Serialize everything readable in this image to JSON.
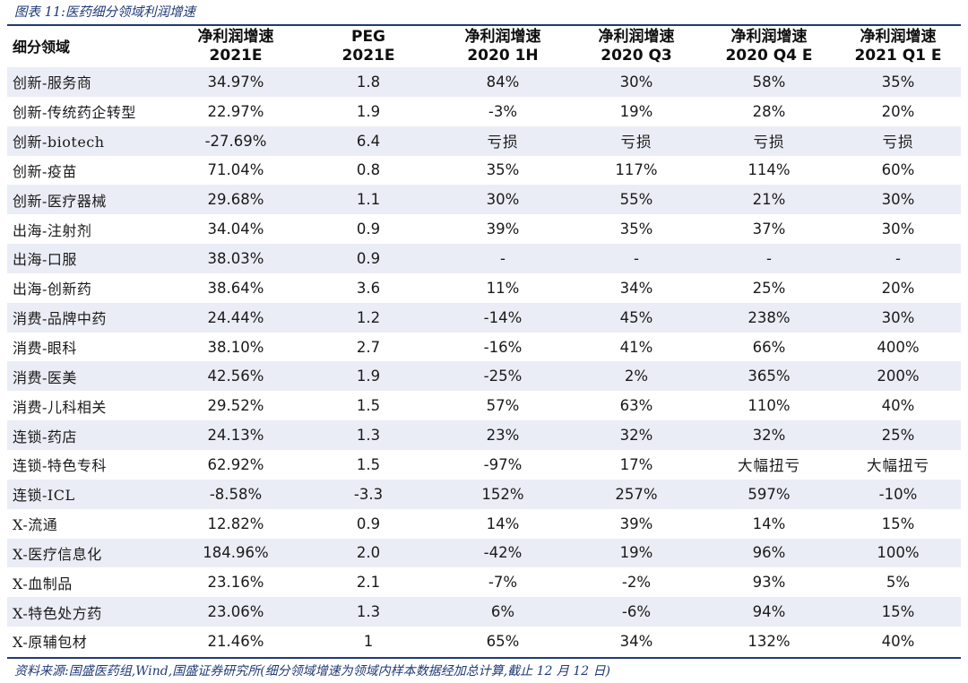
{
  "caption": "图表 11:医药细分领域利润增速",
  "table": {
    "headers": [
      {
        "line1": "细分领域",
        "line2": ""
      },
      {
        "line1": "净利润增速",
        "line2": "2021E"
      },
      {
        "line1": "PEG",
        "line2": "2021E"
      },
      {
        "line1": "净利润增速",
        "line2": "2020 1H"
      },
      {
        "line1": "净利润增速",
        "line2": "2020 Q3"
      },
      {
        "line1": "净利润增速",
        "line2": "2020 Q4 E"
      },
      {
        "line1": "净利润增速",
        "line2": "2021 Q1 E"
      }
    ],
    "rows": [
      [
        "创新-服务商",
        "34.97%",
        "1.8",
        "84%",
        "30%",
        "58%",
        "35%"
      ],
      [
        "创新-传统药企转型",
        "22.97%",
        "1.9",
        "-3%",
        "19%",
        "28%",
        "20%"
      ],
      [
        "创新-biotech",
        "-27.69%",
        "6.4",
        "亏损",
        "亏损",
        "亏损",
        "亏损"
      ],
      [
        "创新-疫苗",
        "71.04%",
        "0.8",
        "35%",
        "117%",
        "114%",
        "60%"
      ],
      [
        "创新-医疗器械",
        "29.68%",
        "1.1",
        "30%",
        "55%",
        "21%",
        "30%"
      ],
      [
        "出海-注射剂",
        "34.04%",
        "0.9",
        "39%",
        "35%",
        "37%",
        "30%"
      ],
      [
        "出海-口服",
        "38.03%",
        "0.9",
        "-",
        "-",
        "-",
        "-"
      ],
      [
        "出海-创新药",
        "38.64%",
        "3.6",
        "11%",
        "34%",
        "25%",
        "20%"
      ],
      [
        "消费-品牌中药",
        "24.44%",
        "1.2",
        "-14%",
        "45%",
        "238%",
        "30%"
      ],
      [
        "消费-眼科",
        "38.10%",
        "2.7",
        "-16%",
        "41%",
        "66%",
        "400%"
      ],
      [
        "消费-医美",
        "42.56%",
        "1.9",
        "-25%",
        "2%",
        "365%",
        "200%"
      ],
      [
        "消费-儿科相关",
        "29.52%",
        "1.5",
        "57%",
        "63%",
        "110%",
        "40%"
      ],
      [
        "连锁-药店",
        "24.13%",
        "1.3",
        "23%",
        "32%",
        "32%",
        "25%"
      ],
      [
        "连锁-特色专科",
        "62.92%",
        "1.5",
        "-97%",
        "17%",
        "大幅扭亏",
        "大幅扭亏"
      ],
      [
        "连锁-ICL",
        "-8.58%",
        "-3.3",
        "152%",
        "257%",
        "597%",
        "-10%"
      ],
      [
        "X-流通",
        "12.82%",
        "0.9",
        "14%",
        "39%",
        "14%",
        "15%"
      ],
      [
        "X-医疗信息化",
        "184.96%",
        "2.0",
        "-42%",
        "19%",
        "96%",
        "100%"
      ],
      [
        "X-血制品",
        "23.16%",
        "2.1",
        "-7%",
        "-2%",
        "93%",
        "5%"
      ],
      [
        "X-特色处方药",
        "23.06%",
        "1.3",
        "6%",
        "-6%",
        "94%",
        "15%"
      ],
      [
        "X-原辅包材",
        "21.46%",
        "1",
        "65%",
        "34%",
        "132%",
        "40%"
      ]
    ]
  },
  "source": "资料来源:国盛医药组,Wind,国盛证券研究所(细分领域增速为领域内样本数据经加总计算,截止 12 月 12 日)",
  "colors": {
    "accent": "#1f3a77",
    "band": "#eaedf5"
  }
}
